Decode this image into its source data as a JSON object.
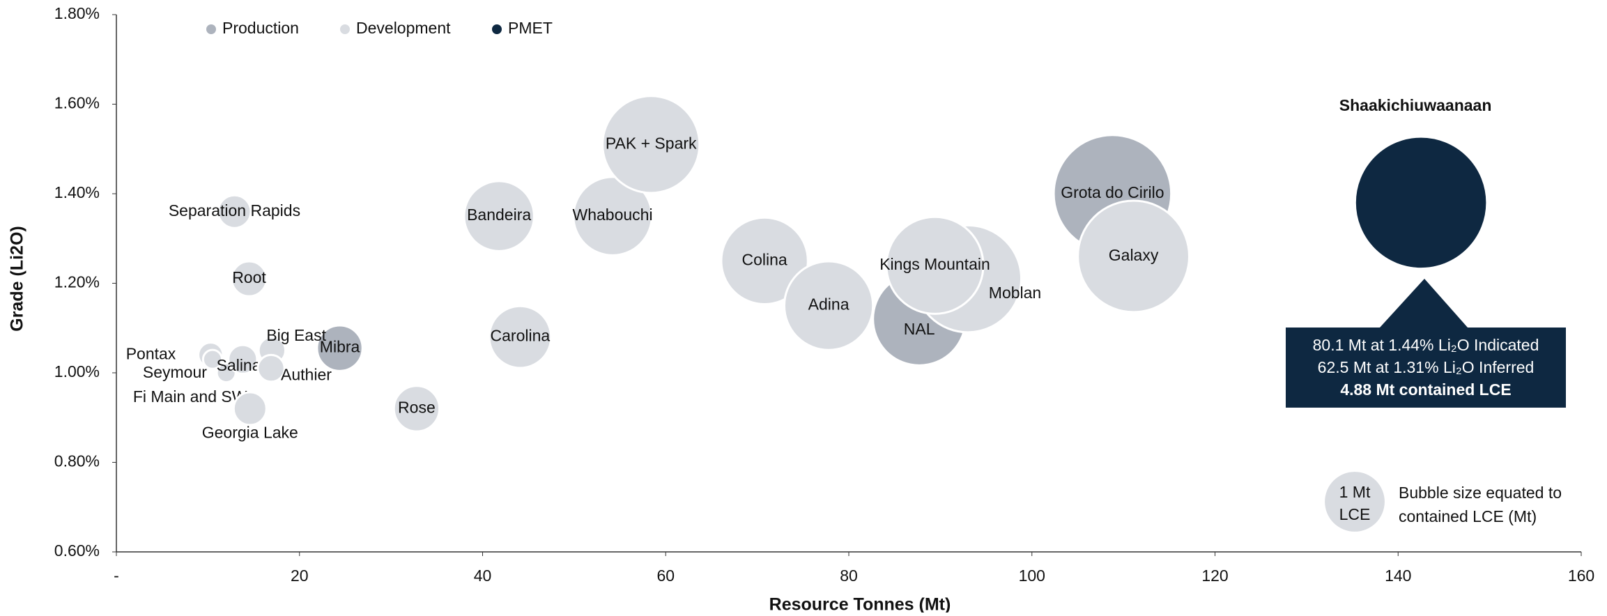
{
  "chart_data": {
    "type": "bubble",
    "x_label": "Resource Tonnes (Mt)",
    "y_label": "Grade (Li2O)",
    "xlim": [
      0,
      160
    ],
    "xticks": [
      {
        "value": 0,
        "label": "-"
      },
      20,
      40,
      60,
      80,
      100,
      120,
      140,
      160
    ],
    "ylim": [
      0.6,
      1.8
    ],
    "yticks": [
      {
        "value": 0.6,
        "label": "0.60%"
      },
      {
        "value": 0.8,
        "label": "0.80%"
      },
      {
        "value": 1.0,
        "label": "1.00%"
      },
      {
        "value": 1.2,
        "label": "1.20%"
      },
      {
        "value": 1.4,
        "label": "1.40%"
      },
      {
        "value": 1.6,
        "label": "1.60%"
      },
      {
        "value": 1.8,
        "label": "1.80%"
      }
    ],
    "legend": "top-left",
    "series": [
      {
        "name": "Production",
        "color": "#adb3bd",
        "labels": [
          "Grota do Cirilo",
          "NAL",
          "Mibra"
        ],
        "x": [
          108.8,
          87.7,
          24.4
        ],
        "values": [
          1.4,
          1.12,
          1.055
        ],
        "sizes": [
          3.86,
          2.4,
          0.58
        ]
      },
      {
        "name": "Development",
        "color": "#d9dce1",
        "labels": [
          "Separation Rapids",
          "Root",
          "Pontax",
          "Seymour",
          "Fi Main and SW",
          "Big East",
          "Salinas",
          "Authier",
          "Georgia Lake",
          "Rose",
          "Carolina",
          "Bandeira",
          "Whabouchi",
          "PAK + Spark",
          "Colina",
          "Adina",
          "Moblan",
          "Kings Mountain",
          "Galaxy"
        ],
        "x": [
          12.9,
          14.5,
          10.3,
          10.5,
          12,
          17,
          13.8,
          16.9,
          14.6,
          32.8,
          44.1,
          41.8,
          54.2,
          58.4,
          70.8,
          77.8,
          93,
          89.4,
          111.1
        ],
        "values": [
          1.36,
          1.21,
          1.04,
          1.03,
          1.0,
          1.05,
          1.03,
          1.01,
          0.92,
          0.92,
          1.08,
          1.35,
          1.35,
          1.51,
          1.25,
          1.15,
          1.21,
          1.24,
          1.26
        ],
        "sizes": [
          0.3,
          0.34,
          0.17,
          0.1,
          0.1,
          0.2,
          0.23,
          0.2,
          0.3,
          0.58,
          1.07,
          1.37,
          1.72,
          2.63,
          2.1,
          2.2,
          3.2,
          2.63,
          3.47
        ]
      },
      {
        "name": "PMET",
        "color": "#0e2841",
        "labels": [
          "Shaakichiuwaanaan"
        ],
        "x": [
          142.5
        ],
        "values": [
          1.38
        ],
        "sizes": [
          4.88
        ]
      }
    ],
    "callout": {
      "lines": [
        "80.1 Mt at 1.44% Li₂O Indicated",
        "62.5 Mt at 1.31% Li₂O Inferred",
        "4.88 Mt contained LCE"
      ]
    },
    "size_legend": {
      "size": 1,
      "label": [
        "1 Mt",
        "LCE"
      ],
      "text": [
        "Bubble size equated to",
        "contained LCE (Mt)"
      ]
    }
  }
}
